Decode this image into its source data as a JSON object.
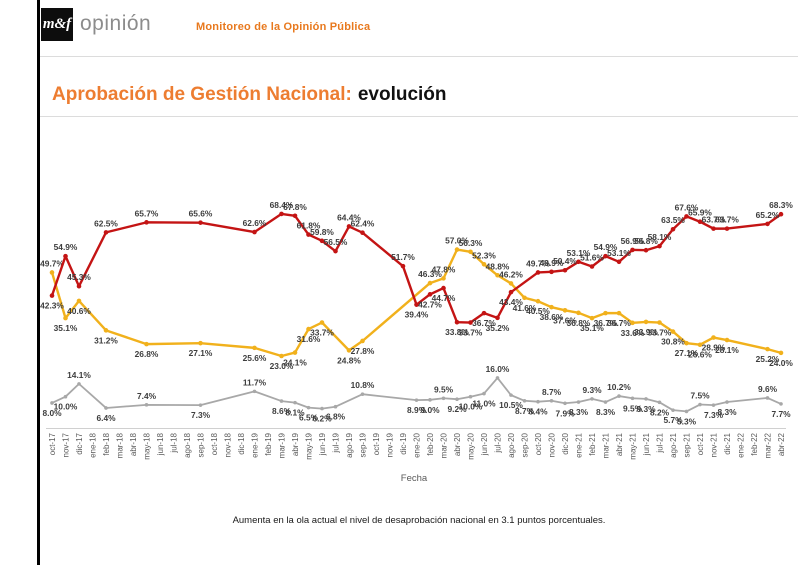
{
  "header": {
    "logo_text": "m&f",
    "logo_wordmark": "opinión",
    "tagline": "Monitoreo de la Opinión Pública"
  },
  "title": {
    "highlight": "Aprobación de Gestión Nacional:",
    "rest": "evolución"
  },
  "footer": {
    "note": "Aumenta en la ola actual el nivel de desaprobación nacional en 3.1 puntos porcentuales."
  },
  "theme": {
    "accent_orange": "#ed7d31",
    "tagline_orange": "#e8791e",
    "logo_gray": "#8c8c8c"
  },
  "chart_data": {
    "type": "line",
    "title": "Aprobación de Gestión Nacional: evolución",
    "xlabel": "Fecha",
    "ylabel": "",
    "ylim": [
      0,
      75
    ],
    "grid": false,
    "legend": "none",
    "categories": [
      "oct-17",
      "nov-17",
      "dic-17",
      "ene-18",
      "feb-18",
      "mar-18",
      "abr-18",
      "may-18",
      "jun-18",
      "jul-18",
      "ago-18",
      "sep-18",
      "oct-18",
      "nov-18",
      "dic-18",
      "ene-19",
      "feb-19",
      "mar-19",
      "abr-19",
      "may-19",
      "jun-19",
      "jul-19",
      "ago-19",
      "sep-19",
      "oct-19",
      "nov-19",
      "dic-19",
      "ene-20",
      "feb-20",
      "mar-20",
      "abr-20",
      "may-20",
      "jun-20",
      "jul-20",
      "ago-20",
      "sep-20",
      "oct-20",
      "nov-20",
      "dic-20",
      "ene-21",
      "feb-21",
      "mar-21",
      "abr-21",
      "may-21",
      "jun-21",
      "jul-21",
      "ago-21",
      "sep-21",
      "oct-21",
      "nov-21",
      "dic-21",
      "ene-22",
      "feb-22",
      "mar-22",
      "abr-22"
    ],
    "series": [
      {
        "id": "aprobacion",
        "color": "#f1b11c",
        "points": [
          [
            0,
            49.7
          ],
          [
            1,
            35.1
          ],
          [
            2,
            40.6
          ],
          [
            4,
            31.2
          ],
          [
            7,
            26.8
          ],
          [
            11,
            27.1
          ],
          [
            15,
            25.6
          ],
          [
            17,
            23.0
          ],
          [
            18,
            24.1
          ],
          [
            19,
            31.6
          ],
          [
            20,
            33.7
          ],
          [
            22,
            24.8
          ],
          [
            23,
            27.8
          ],
          [
            28,
            46.3
          ],
          [
            29,
            47.8
          ],
          [
            30,
            57.0
          ],
          [
            31,
            56.3
          ],
          [
            32,
            52.3
          ],
          [
            33,
            48.8
          ],
          [
            34,
            46.2
          ],
          [
            35,
            41.6
          ],
          [
            36,
            40.5
          ],
          [
            37,
            38.6
          ],
          [
            38,
            37.6
          ],
          [
            39,
            36.8
          ],
          [
            40,
            35.1
          ],
          [
            41,
            36.7
          ],
          [
            42,
            36.7
          ],
          [
            43,
            33.6
          ],
          [
            44,
            33.9
          ],
          [
            45,
            33.7
          ],
          [
            46,
            30.8
          ],
          [
            47,
            27.1
          ],
          [
            48,
            26.6
          ],
          [
            49,
            28.9
          ],
          [
            50,
            28.1
          ],
          [
            53,
            25.2
          ],
          [
            54,
            24.0
          ]
        ]
      },
      {
        "id": "ns-nr",
        "color": "#a8a8a8",
        "points": [
          [
            0,
            8.0
          ],
          [
            1,
            10.0
          ],
          [
            2,
            14.1
          ],
          [
            4,
            6.4
          ],
          [
            7,
            7.4
          ],
          [
            11,
            7.3
          ],
          [
            15,
            11.7
          ],
          [
            17,
            8.6
          ],
          [
            18,
            8.1
          ],
          [
            19,
            6.5
          ],
          [
            20,
            6.2
          ],
          [
            21,
            6.8
          ],
          [
            23,
            10.8
          ],
          [
            27,
            8.9
          ],
          [
            28,
            9.0
          ],
          [
            29,
            9.5
          ],
          [
            30,
            9.2
          ],
          [
            31,
            10.0
          ],
          [
            32,
            11.0
          ],
          [
            33,
            16.0
          ],
          [
            34,
            10.5
          ],
          [
            35,
            8.7
          ],
          [
            36,
            8.4
          ],
          [
            37,
            8.7
          ],
          [
            38,
            7.9
          ],
          [
            39,
            8.3
          ],
          [
            40,
            9.3
          ],
          [
            41,
            8.3
          ],
          [
            42,
            10.2
          ],
          [
            43,
            9.5
          ],
          [
            44,
            9.3
          ],
          [
            45,
            8.2
          ],
          [
            46,
            5.7
          ],
          [
            47,
            5.3
          ],
          [
            48,
            7.5
          ],
          [
            49,
            7.3
          ],
          [
            50,
            8.3
          ],
          [
            53,
            9.6
          ],
          [
            54,
            7.7
          ]
        ]
      },
      {
        "id": "desaprobacion",
        "color": "#c41414",
        "points": [
          [
            0,
            42.3
          ],
          [
            1,
            54.9
          ],
          [
            2,
            45.3
          ],
          [
            4,
            62.5
          ],
          [
            7,
            65.7
          ],
          [
            11,
            65.6
          ],
          [
            15,
            62.6
          ],
          [
            17,
            68.4
          ],
          [
            18,
            67.8
          ],
          [
            19,
            61.8
          ],
          [
            20,
            59.8
          ],
          [
            21,
            56.5
          ],
          [
            22,
            64.4
          ],
          [
            23,
            62.4
          ],
          [
            26,
            51.7
          ],
          [
            27,
            39.4
          ],
          [
            28,
            42.7
          ],
          [
            29,
            44.7
          ],
          [
            30,
            33.8
          ],
          [
            31,
            33.7
          ],
          [
            32,
            36.7
          ],
          [
            33,
            35.2
          ],
          [
            34,
            43.4
          ],
          [
            36,
            49.7
          ],
          [
            37,
            49.9
          ],
          [
            38,
            50.4
          ],
          [
            39,
            53.1
          ],
          [
            40,
            51.6
          ],
          [
            41,
            54.9
          ],
          [
            42,
            53.1
          ],
          [
            43,
            56.9
          ],
          [
            44,
            56.8
          ],
          [
            45,
            58.1
          ],
          [
            46,
            63.5
          ],
          [
            47,
            67.6
          ],
          [
            48,
            65.9
          ],
          [
            49,
            63.7
          ],
          [
            50,
            63.7
          ],
          [
            53,
            65.2
          ],
          [
            54,
            68.3
          ]
        ]
      }
    ]
  }
}
